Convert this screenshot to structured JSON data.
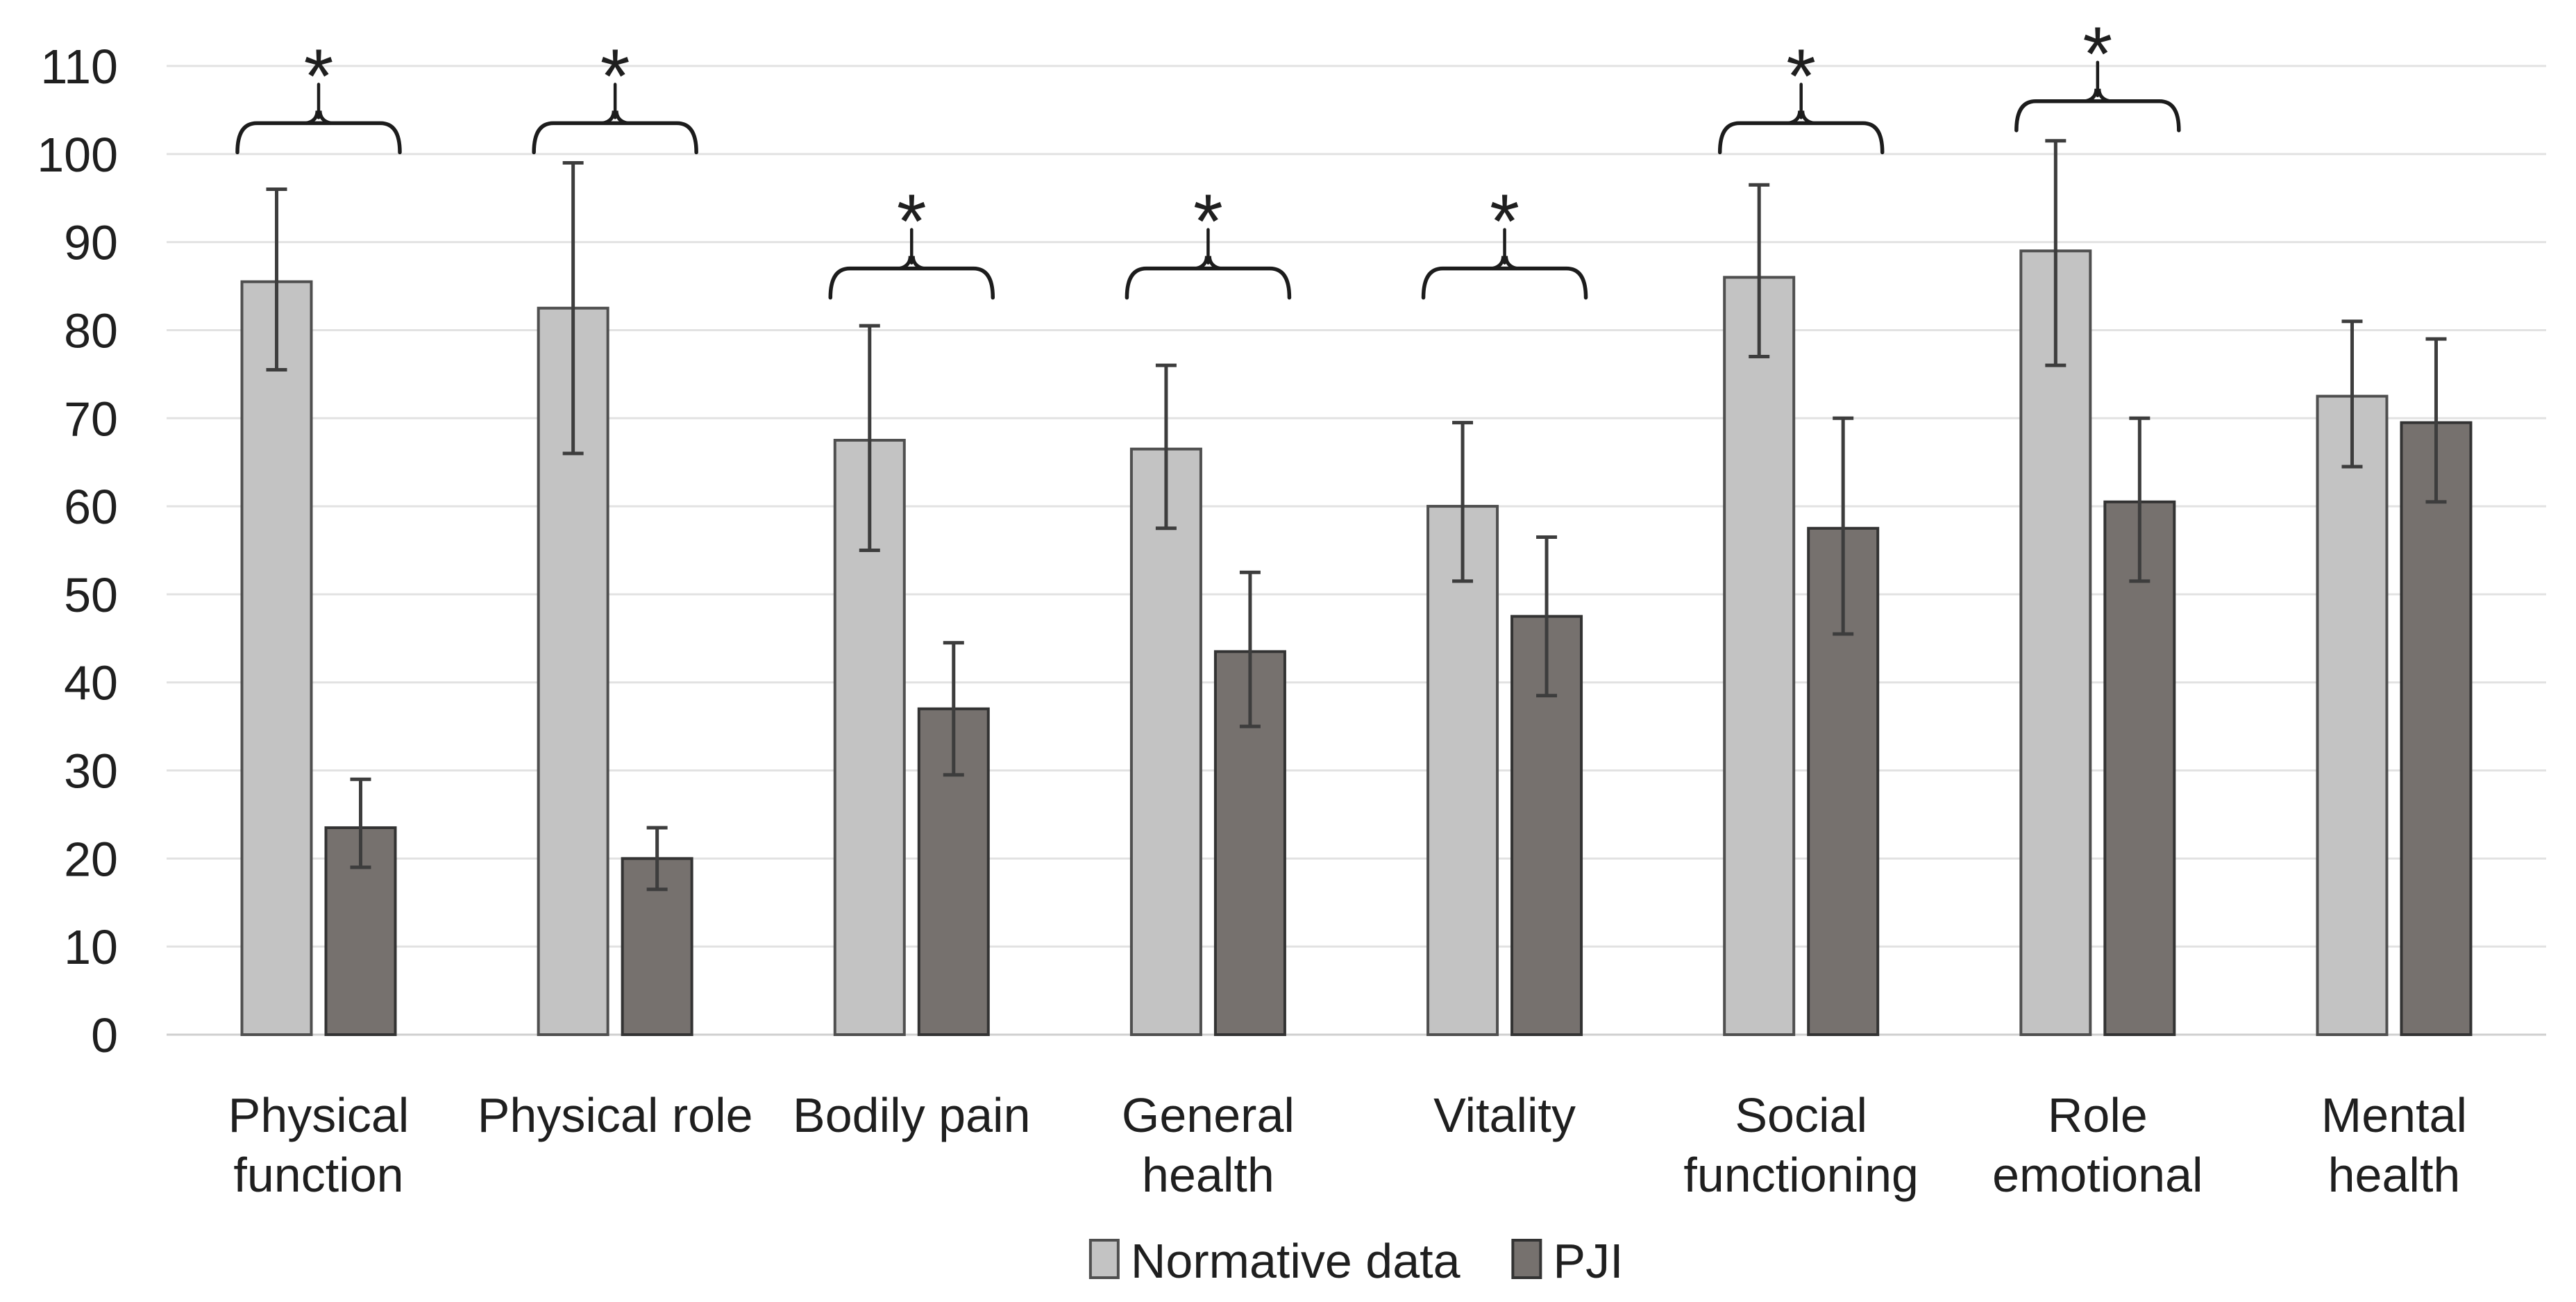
{
  "chart_data": {
    "type": "bar",
    "title": "",
    "categories": [
      "Physical function",
      "Physical role",
      "Bodily pain",
      "General health",
      "Vitality",
      "Social functioning",
      "Role emotional",
      "Mental health"
    ],
    "category_lines": [
      [
        "Physical",
        "function"
      ],
      [
        "Physical role"
      ],
      [
        "Bodily pain"
      ],
      [
        "General",
        "health"
      ],
      [
        "Vitality"
      ],
      [
        "Social",
        "functioning"
      ],
      [
        "Role",
        "emotional"
      ],
      [
        "Mental",
        "health"
      ]
    ],
    "series": [
      {
        "name": "Normative data",
        "fill": "#c3c3c3",
        "border": "#4f4f4f",
        "values": [
          85.5,
          82.5,
          67.5,
          66.5,
          60,
          86,
          89,
          72.5
        ],
        "error_low": [
          75.5,
          66,
          55,
          57.5,
          51.5,
          77,
          76,
          64.5
        ],
        "error_high": [
          96,
          99,
          80.5,
          76,
          69.5,
          96.5,
          101.5,
          81
        ]
      },
      {
        "name": "PJI",
        "fill": "#76716e",
        "border": "#333333",
        "values": [
          23.5,
          20,
          37,
          43.5,
          47.5,
          57.5,
          60.5,
          69.5
        ],
        "error_low": [
          19,
          16.5,
          29.5,
          35,
          38.5,
          45.5,
          51.5,
          60.5
        ],
        "error_high": [
          29,
          23.5,
          44.5,
          52.5,
          56.5,
          70,
          70,
          79
        ]
      }
    ],
    "significance": [
      {
        "category_index": 0,
        "marker": "*",
        "line_value": 103.5
      },
      {
        "category_index": 1,
        "marker": "*",
        "line_value": 103.5
      },
      {
        "category_index": 2,
        "marker": "*",
        "line_value": 87
      },
      {
        "category_index": 3,
        "marker": "*",
        "line_value": 87
      },
      {
        "category_index": 4,
        "marker": "*",
        "line_value": 87
      },
      {
        "category_index": 5,
        "marker": "*",
        "line_value": 103.5
      },
      {
        "category_index": 6,
        "marker": "*",
        "line_value": 106
      }
    ],
    "yaxis": {
      "min": 0,
      "max": 110,
      "step": 10,
      "tick_labels": [
        "0",
        "10",
        "20",
        "30",
        "40",
        "50",
        "60",
        "70",
        "80",
        "90",
        "100",
        "110"
      ]
    },
    "xlabel": "",
    "ylabel": "",
    "grid": true,
    "legend_position": "bottom",
    "legend": [
      {
        "label": "Normative data",
        "fill": "#c3c3c3",
        "border": "#4f4f4f"
      },
      {
        "label": "PJI",
        "fill": "#76716e",
        "border": "#333333"
      }
    ],
    "colors": {
      "gridline": "#e2e2e2",
      "baseline": "#cfcfcf",
      "error_bar": "#3d3d3d",
      "brace": "#1c1c1c",
      "text": "#1f1f1f"
    }
  }
}
